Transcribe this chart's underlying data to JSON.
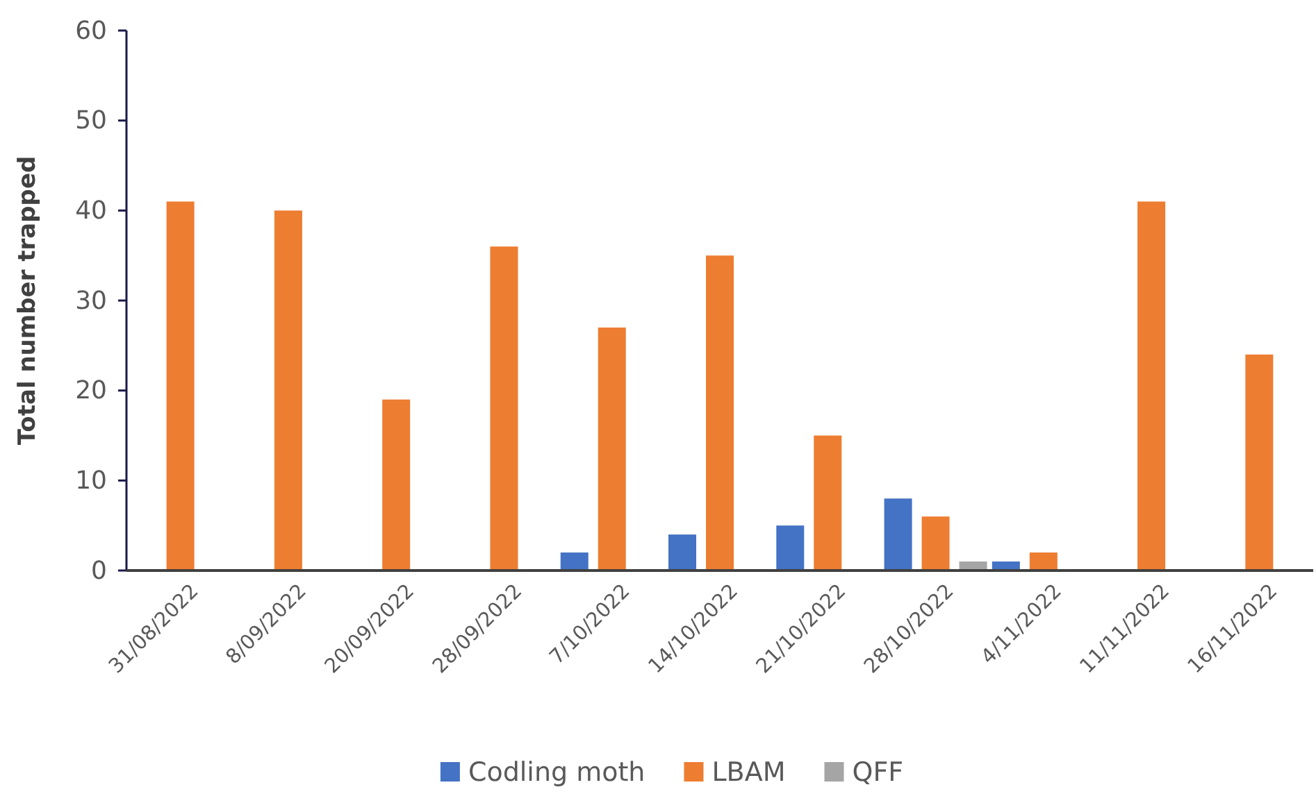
{
  "chart_data": {
    "type": "bar",
    "ylabel": "Total number trapped",
    "categories": [
      "31/08/2022",
      "8/09/2022",
      "20/09/2022",
      "28/09/2022",
      "7/10/2022",
      "14/10/2022",
      "21/10/2022",
      "28/10/2022",
      "4/11/2022",
      "11/11/2022",
      "16/11/2022"
    ],
    "series": [
      {
        "name": "Codling moth",
        "color": "#4472c4",
        "values": [
          null,
          null,
          null,
          null,
          2,
          4,
          5,
          8,
          1,
          null,
          null
        ]
      },
      {
        "name": "LBAM",
        "color": "#ed7d31",
        "values": [
          41,
          40,
          19,
          36,
          27,
          35,
          15,
          6,
          2,
          41,
          24
        ]
      },
      {
        "name": "QFF",
        "color": "#a5a5a5",
        "values": [
          null,
          null,
          null,
          null,
          null,
          null,
          null,
          1,
          null,
          null,
          null
        ]
      }
    ],
    "ylim": [
      0,
      60
    ],
    "yticks": [
      0,
      10,
      20,
      30,
      40,
      50,
      60
    ],
    "grid": false,
    "legend": "bottom"
  }
}
